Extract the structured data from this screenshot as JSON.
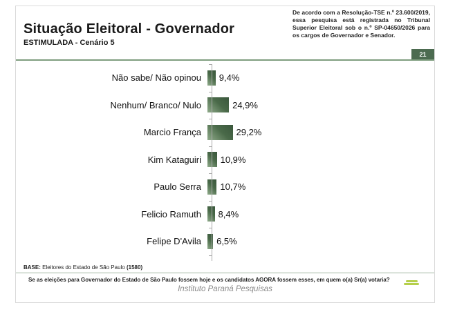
{
  "header": {
    "title": "Situação Eleitoral - Governador",
    "subtitle": "ESTIMULADA - Cenário 5",
    "disclaimer": "De acordo com a Resolução-TSE n.º 23.600/2019, essa pesquisa está registrada no Tribunal Superior Eleitoral sob o n.º SP-04650/2026 para os cargos de Governador e Senador.",
    "page_number": "21"
  },
  "chart_data": {
    "type": "bar",
    "orientation": "horizontal",
    "title": "Situação Eleitoral - Governador — ESTIMULADA - Cenário 5",
    "categories": [
      "Não sabe/ Não opinou",
      "Nenhum/ Branco/ Nulo",
      "Marcio França",
      "Kim Kataguiri",
      "Paulo Serra",
      "Felicio Ramuth",
      "Felipe D'Avila"
    ],
    "values": [
      9.4,
      24.9,
      29.2,
      10.9,
      10.7,
      8.4,
      6.5
    ],
    "value_labels": [
      "9,4%",
      "24,9%",
      "29,2%",
      "10,9%",
      "10,7%",
      "8,4%",
      "6,5%"
    ],
    "xlabel": "",
    "ylabel": "",
    "xlim": [
      0,
      100
    ],
    "grid": false,
    "legend": false,
    "bar_color_dark": "#3a573c",
    "bar_color_light": "#90ab8b"
  },
  "footer": {
    "base_label": "BASE:",
    "base_text": " Eleitores do Estado de São Paulo ",
    "base_count": "(1580)",
    "question": "Se as eleições para Governador do Estado de São Paulo fossem hoje e os candidatos AGORA fossem esses, em quem o(a) Sr(a) votaria?",
    "institute": "Instituto Paraná Pesquisas"
  },
  "colors": {
    "accent_green": "#7d9c7d",
    "badge_green": "#4c6b50",
    "logo_green": "#b5cf4b"
  }
}
